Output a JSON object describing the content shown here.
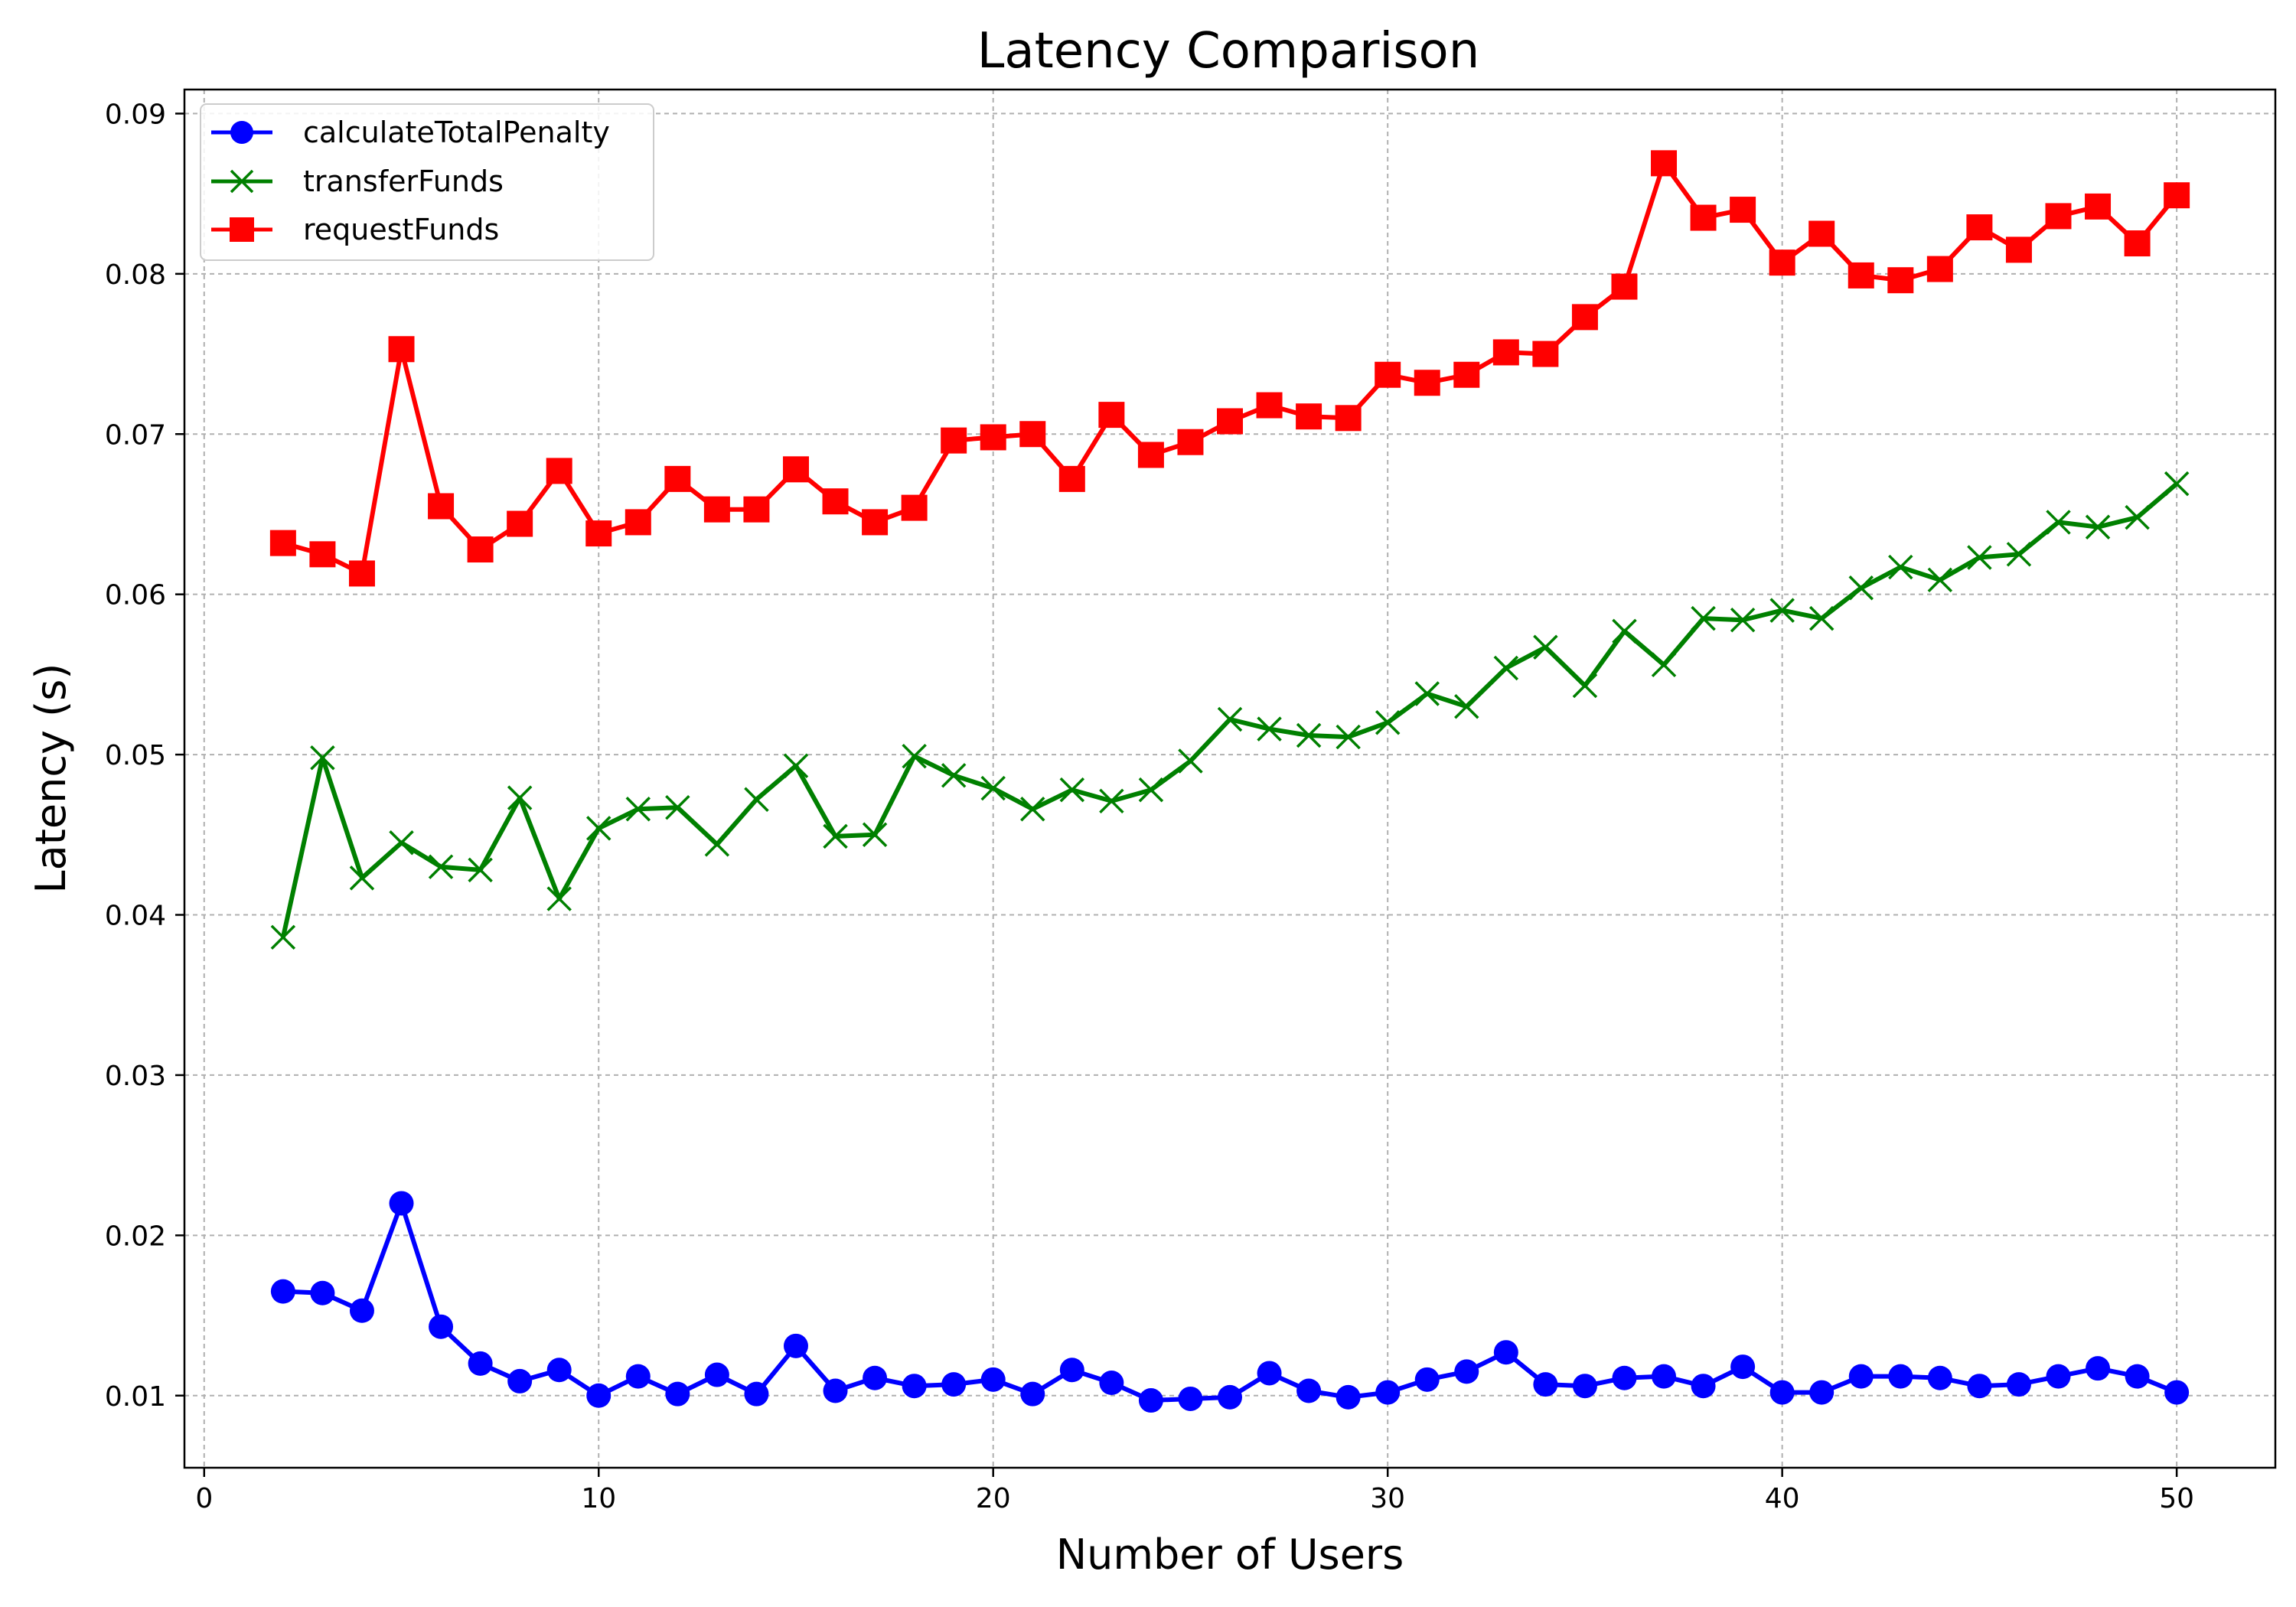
{
  "chart_data": {
    "type": "line",
    "title": "Latency Comparison",
    "xlabel": "Number of Users",
    "ylabel": "Latency (s)",
    "xlim": [
      -0.5,
      52.5
    ],
    "ylim": [
      0.0055,
      0.0915
    ],
    "xticks": [
      0,
      10,
      20,
      30,
      40,
      50
    ],
    "yticks": [
      0.01,
      0.02,
      0.03,
      0.04,
      0.05,
      0.06,
      0.07,
      0.08,
      0.09
    ],
    "xtick_labels": [
      "0",
      "10",
      "20",
      "30",
      "40",
      "50"
    ],
    "ytick_labels": [
      "0.01",
      "0.02",
      "0.03",
      "0.04",
      "0.05",
      "0.06",
      "0.07",
      "0.08",
      "0.09"
    ],
    "grid": true,
    "legend_position": "top-left",
    "x": [
      2,
      3,
      4,
      5,
      6,
      7,
      8,
      9,
      10,
      11,
      12,
      13,
      14,
      15,
      16,
      17,
      18,
      19,
      20,
      21,
      22,
      23,
      24,
      25,
      26,
      27,
      28,
      29,
      30,
      31,
      32,
      33,
      34,
      35,
      36,
      37,
      38,
      39,
      40,
      41,
      42,
      43,
      44,
      45,
      46,
      47,
      48,
      49,
      50
    ],
    "series": [
      {
        "name": "calculateTotalPenalty",
        "color": "#0000ff",
        "marker": "circle",
        "values": [
          0.0165,
          0.0164,
          0.0153,
          0.022,
          0.0143,
          0.012,
          0.0109,
          0.0116,
          0.01,
          0.0112,
          0.0101,
          0.0113,
          0.0101,
          0.0131,
          0.0103,
          0.0111,
          0.0106,
          0.0107,
          0.011,
          0.0101,
          0.0116,
          0.0108,
          0.0097,
          0.0098,
          0.0099,
          0.0114,
          0.0103,
          0.0099,
          0.0102,
          0.011,
          0.0115,
          0.0127,
          0.0107,
          0.0106,
          0.0111,
          0.0112,
          0.0106,
          0.0118,
          0.0102,
          0.0102,
          0.0112,
          0.0112,
          0.0111,
          0.0106,
          0.0107,
          0.0112,
          0.0117,
          0.0112,
          0.0102
        ]
      },
      {
        "name": "transferFunds",
        "color": "#008000",
        "marker": "x",
        "values": [
          0.0386,
          0.0498,
          0.0423,
          0.0445,
          0.043,
          0.0428,
          0.0473,
          0.041,
          0.0454,
          0.0466,
          0.0467,
          0.0444,
          0.0472,
          0.0493,
          0.0449,
          0.045,
          0.0499,
          0.0487,
          0.0479,
          0.0466,
          0.0478,
          0.0471,
          0.0478,
          0.0496,
          0.0522,
          0.0516,
          0.0512,
          0.0511,
          0.052,
          0.0538,
          0.053,
          0.0554,
          0.0567,
          0.0543,
          0.0577,
          0.0556,
          0.0585,
          0.0584,
          0.059,
          0.0585,
          0.0604,
          0.0617,
          0.0609,
          0.0623,
          0.0625,
          0.0645,
          0.0642,
          0.0648,
          0.0669
        ]
      },
      {
        "name": "requestFunds",
        "color": "#ff0000",
        "marker": "square",
        "values": [
          0.0632,
          0.0625,
          0.0613,
          0.0753,
          0.0655,
          0.0628,
          0.0644,
          0.0677,
          0.0638,
          0.0645,
          0.0672,
          0.0653,
          0.0653,
          0.0678,
          0.0658,
          0.0645,
          0.0654,
          0.0696,
          0.0698,
          0.07,
          0.0672,
          0.0712,
          0.0687,
          0.0695,
          0.0708,
          0.0718,
          0.0711,
          0.071,
          0.0737,
          0.0732,
          0.0737,
          0.0751,
          0.075,
          0.0773,
          0.0792,
          0.0869,
          0.0835,
          0.084,
          0.0807,
          0.0825,
          0.0799,
          0.0796,
          0.0803,
          0.0829,
          0.0815,
          0.0836,
          0.0842,
          0.0819,
          0.0849
        ]
      }
    ]
  }
}
